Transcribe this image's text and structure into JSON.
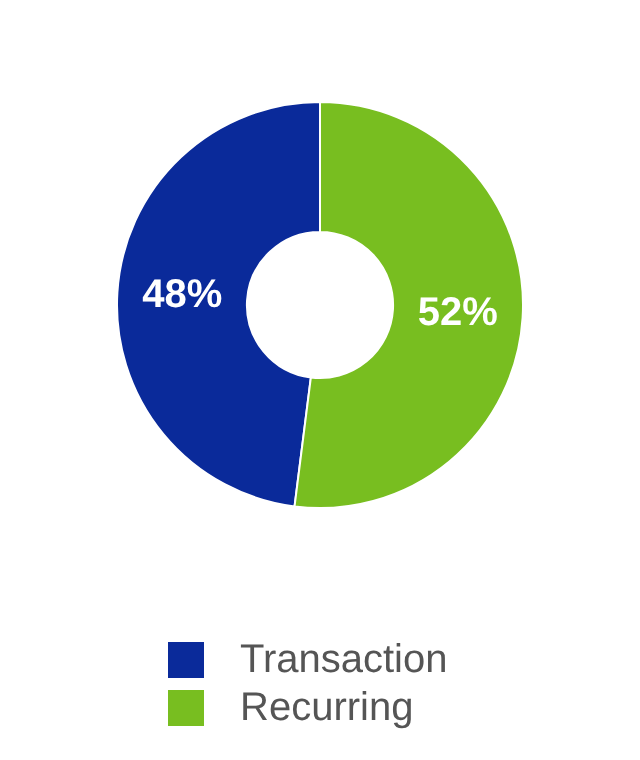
{
  "chart_data": {
    "type": "donut",
    "categories": [
      "Transaction",
      "Recurring"
    ],
    "values": [
      48,
      52
    ],
    "colors": [
      "#0a2a9a",
      "#78be20"
    ],
    "value_labels": [
      "48%",
      "52%"
    ],
    "legend": "bottom"
  }
}
